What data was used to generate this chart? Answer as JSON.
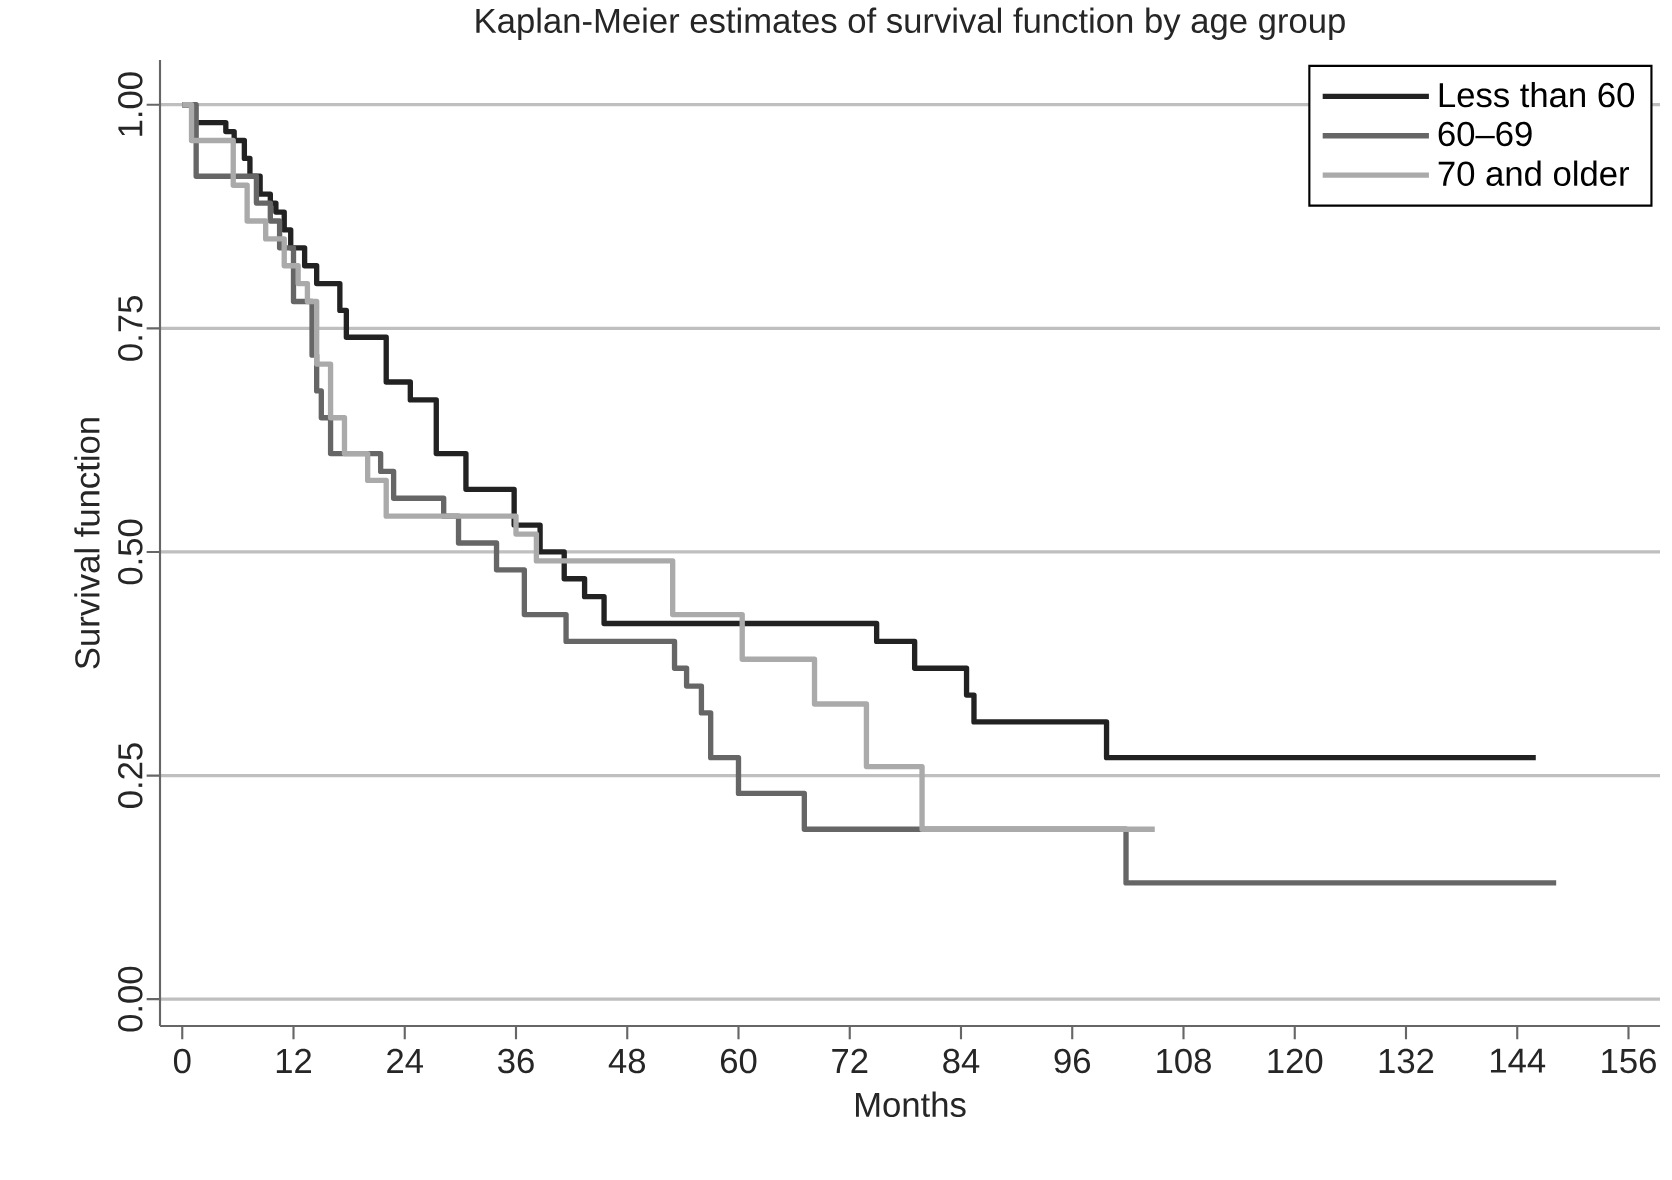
{
  "chart_data": {
    "type": "step",
    "title": "Kaplan-Meier estimates of survival function by age group",
    "xlabel": "Months",
    "ylabel": "Survival function",
    "xlim": [
      -2.4,
      159.4
    ],
    "ylim": [
      -0.03,
      1.05
    ],
    "xticks": [
      0,
      12,
      24,
      36,
      48,
      60,
      72,
      84,
      96,
      108,
      120,
      132,
      144,
      156
    ],
    "yticks": [
      {
        "value": 0,
        "label": "0.00"
      },
      {
        "value": 0.25,
        "label": "0.25"
      },
      {
        "value": 0.5,
        "label": "0.50"
      },
      {
        "value": 0.75,
        "label": "0.75"
      },
      {
        "value": 1,
        "label": "1.00"
      }
    ],
    "grid": "y",
    "legend": "top right",
    "marker": "none",
    "line_style": "solid",
    "series": [
      {
        "name": "Less than 60",
        "color": "#222222",
        "x": [
          0,
          1.3,
          4.7,
          5.6,
          6.7,
          7.3,
          8.4,
          9.5,
          10.1,
          11,
          11.7,
          13.2,
          14.5,
          17,
          17.7,
          22,
          24.6,
          27.4,
          30.6,
          35.8,
          38.6,
          41.2,
          43.4,
          45.5,
          74.9,
          79,
          84.6,
          85.4,
          99.7,
          146
        ],
        "values": [
          1.0,
          0.98,
          0.97,
          0.96,
          0.94,
          0.92,
          0.9,
          0.89,
          0.88,
          0.86,
          0.84,
          0.82,
          0.8,
          0.77,
          0.74,
          0.69,
          0.67,
          0.61,
          0.57,
          0.53,
          0.5,
          0.47,
          0.45,
          0.42,
          0.4,
          0.37,
          0.34,
          0.31,
          0.27,
          0.27
        ]
      },
      {
        "name": "60–69",
        "color": "#666666",
        "x": [
          0,
          1.5,
          8,
          9.5,
          10.5,
          12,
          14,
          14.5,
          15,
          16,
          21.4,
          22.8,
          28.2,
          29.8,
          33.9,
          36.9,
          41.4,
          53.1,
          54.4,
          56,
          57,
          60,
          67.1,
          101.8,
          148.2
        ],
        "values": [
          1.0,
          0.92,
          0.89,
          0.87,
          0.84,
          0.78,
          0.72,
          0.68,
          0.65,
          0.61,
          0.59,
          0.56,
          0.54,
          0.51,
          0.48,
          0.43,
          0.4,
          0.37,
          0.35,
          0.32,
          0.27,
          0.23,
          0.19,
          0.13,
          0.13
        ]
      },
      {
        "name": "70 and older",
        "color": "#aaaaaa",
        "x": [
          0,
          1,
          5.5,
          7,
          9,
          11,
          12.5,
          13.5,
          14.5,
          16,
          17.5,
          20,
          22,
          36,
          38.2,
          52.9,
          60.4,
          68.2,
          73.8,
          79.8,
          104.9
        ],
        "values": [
          1.0,
          0.96,
          0.91,
          0.87,
          0.85,
          0.82,
          0.8,
          0.78,
          0.71,
          0.65,
          0.61,
          0.58,
          0.54,
          0.52,
          0.49,
          0.43,
          0.38,
          0.33,
          0.26,
          0.19,
          0.19
        ]
      }
    ]
  }
}
